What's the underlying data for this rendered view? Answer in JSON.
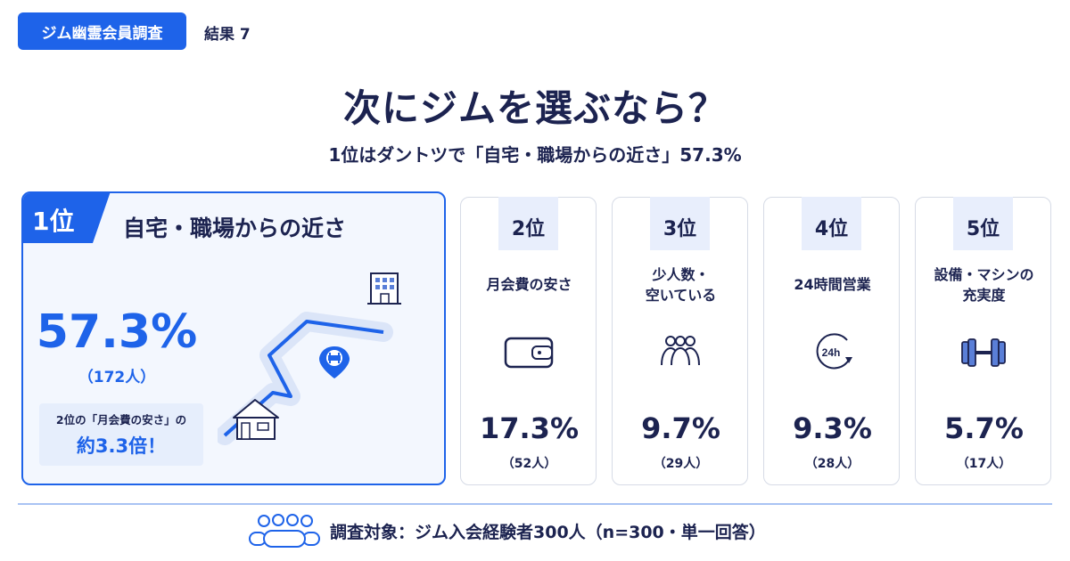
{
  "header": {
    "tag": "ジム幽霊会員調査",
    "result_label": "結果 7"
  },
  "title": "次にジムを選ぶなら？",
  "subtitle": "1位はダントツで「自宅・職場からの近さ」57.3%",
  "top": {
    "rank": "1位",
    "name": "自宅・職場からの近さ",
    "pct": "57.3%",
    "count": "（172人）",
    "compare_line1": "2位の「月会費の安さ」の",
    "compare_line2": "約3.3倍！"
  },
  "ranks": [
    {
      "rank": "2位",
      "name": "月会費の安さ",
      "pct": "17.3%",
      "count": "（52人）",
      "icon": "wallet-icon"
    },
    {
      "rank": "3位",
      "name": "少人数・\n空いている",
      "pct": "9.7%",
      "count": "（29人）",
      "icon": "people-group-icon"
    },
    {
      "rank": "4位",
      "name": "24時間営業",
      "pct": "9.3%",
      "count": "（28人）",
      "icon": "clock-24h-icon"
    },
    {
      "rank": "5位",
      "name": "設備・マシンの\n充実度",
      "pct": "5.7%",
      "count": "（17人）",
      "icon": "dumbbell-icon"
    }
  ],
  "icon_labels": {
    "clock": "24h"
  },
  "footer": "調査対象：ジム入会経験者300人（n=300・単一回答）",
  "colors": {
    "accent": "#1e63e9",
    "navy": "#1c2350",
    "light_bg": "#f3f7fe",
    "route_band": "#dbe5f8"
  },
  "chart_data": {
    "type": "bar",
    "title": "次にジムを選ぶなら？",
    "categories": [
      "自宅・職場からの近さ",
      "月会費の安さ",
      "少人数・空いている",
      "24時間営業",
      "設備・マシンの充実度"
    ],
    "values": [
      57.3,
      17.3,
      9.7,
      9.3,
      5.7
    ],
    "counts": [
      172,
      52,
      29,
      28,
      17
    ],
    "unit": "%"
  }
}
